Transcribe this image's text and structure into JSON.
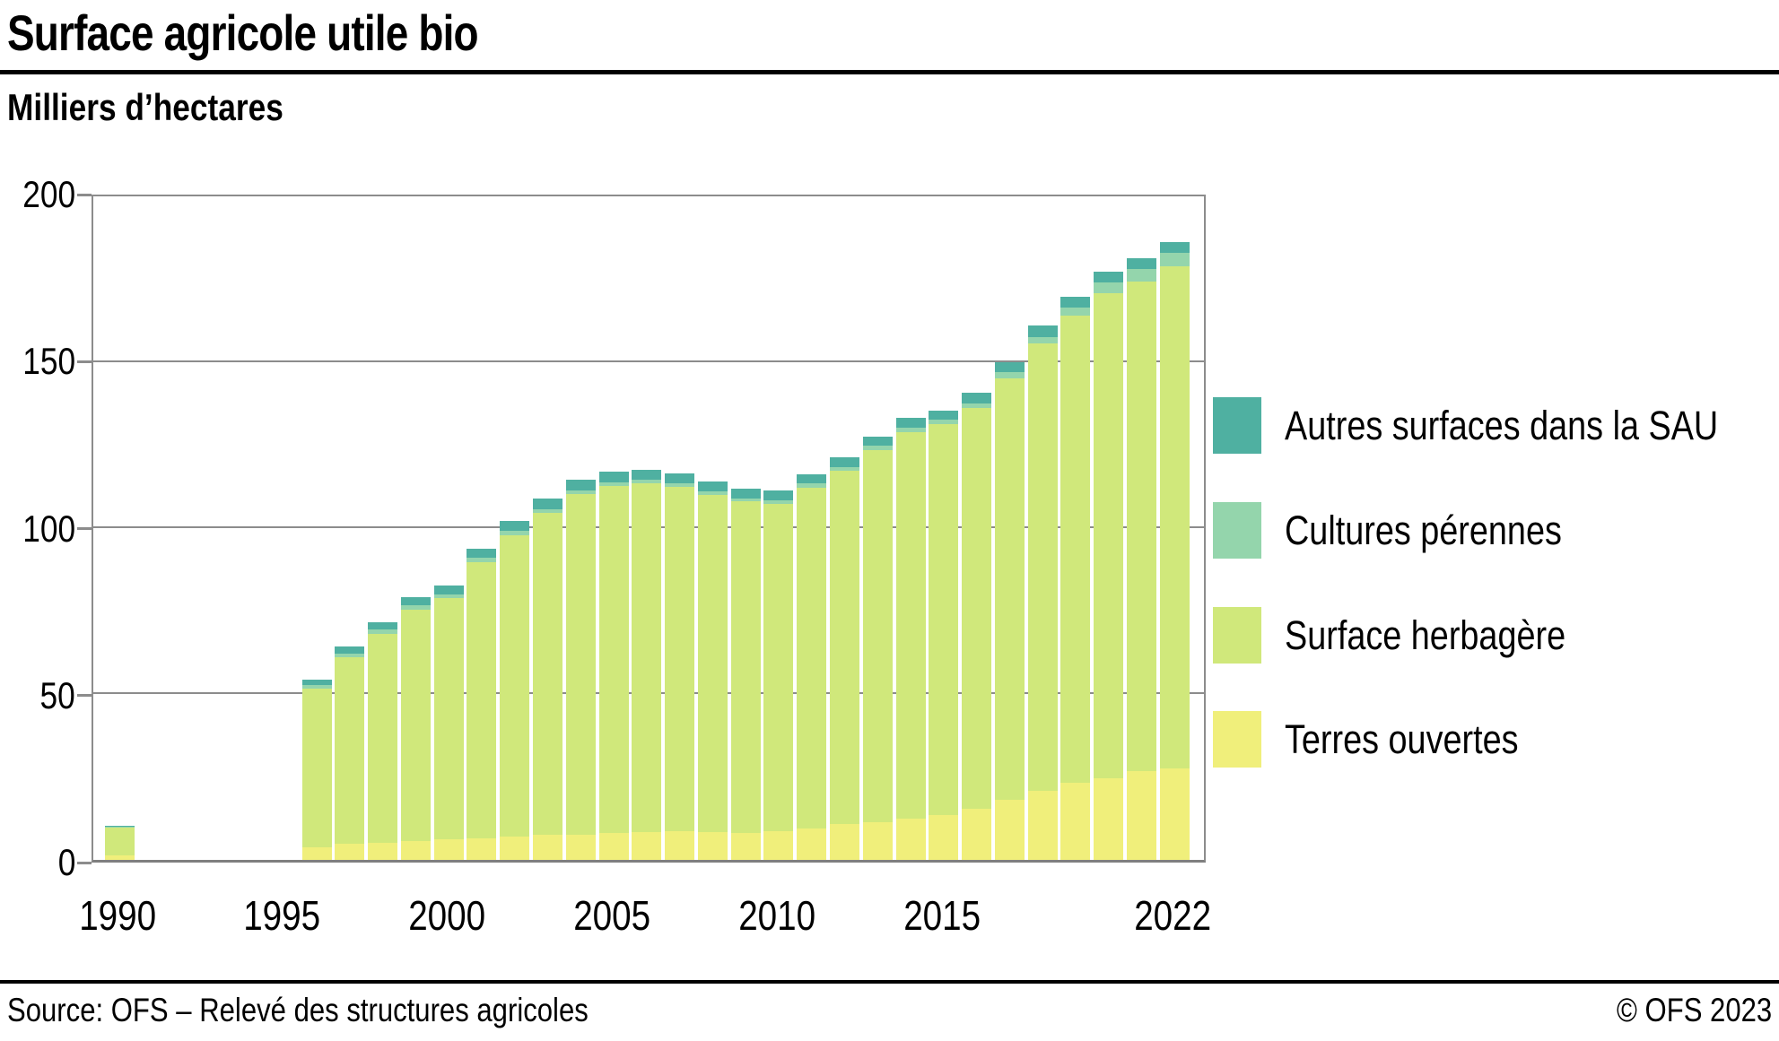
{
  "header": {
    "title": "Surface agricole utile bio",
    "subtitle": "Milliers d’hectares"
  },
  "footer": {
    "source": "Source: OFS – Relevé des structures agricoles",
    "copyright": "© OFS 2023"
  },
  "colors": {
    "autres_surfaces": "#4FB0A1",
    "cultures_perennes": "#94D5AC",
    "surface_herbagere": "#D0E87B",
    "terres_ouvertes": "#F0EF7B",
    "grid": "#8C8C8C",
    "rule": "#000000"
  },
  "legend": {
    "items": [
      {
        "label": "Autres surfaces dans la SAU",
        "color": "#4FB0A1"
      },
      {
        "label": "Cultures pérennes",
        "color": "#94D5AC"
      },
      {
        "label": "Surface herbagère",
        "color": "#D0E87B"
      },
      {
        "label": "Terres ouvertes",
        "color": "#F0EF7B"
      }
    ]
  },
  "chart_data": {
    "type": "bar",
    "stacked": true,
    "title": "Surface agricole utile bio",
    "ylabel": "Milliers d’hectares",
    "xlabel": "",
    "ylim": [
      0,
      200
    ],
    "grid": "horizontal every 50",
    "legend_position": "right",
    "yticks": [
      0,
      50,
      100,
      150,
      200
    ],
    "xtick_years": [
      1990,
      1995,
      2000,
      2005,
      2010,
      2015,
      2022
    ],
    "categories": [
      1990,
      1996,
      1997,
      1998,
      1999,
      2000,
      2001,
      2002,
      2003,
      2004,
      2005,
      2006,
      2007,
      2008,
      2009,
      2010,
      2011,
      2012,
      2013,
      2014,
      2015,
      2016,
      2017,
      2018,
      2019,
      2020,
      2021,
      2022
    ],
    "series": [
      {
        "name": "Terres ouvertes",
        "color": "#F0EF7B",
        "values": [
          1.3,
          3.8,
          4.9,
          5.1,
          5.7,
          6.2,
          6.5,
          7.0,
          7.6,
          7.6,
          8.1,
          8.4,
          8.6,
          8.5,
          8.1,
          8.6,
          9.5,
          10.8,
          11.4,
          12.4,
          13.5,
          15.4,
          18.1,
          20.8,
          23.2,
          24.6,
          26.8,
          27.6
        ]
      },
      {
        "name": "Surface herbagère",
        "color": "#D0E87B",
        "values": [
          8.4,
          47.7,
          56.1,
          63.1,
          69.8,
          72.7,
          83.3,
          90.9,
          97.0,
          102.7,
          104.7,
          105.2,
          103.9,
          101.5,
          99.9,
          98.8,
          102.8,
          106.5,
          112.0,
          116.6,
          117.8,
          120.9,
          127.0,
          134.9,
          140.9,
          146.3,
          147.6,
          151.3
        ]
      },
      {
        "name": "Cultures pérennes",
        "color": "#94D5AC",
        "values": [
          0.5,
          1.3,
          1.3,
          1.2,
          1.2,
          1.2,
          1.2,
          1.2,
          1.2,
          1.1,
          1.0,
          1.0,
          1.0,
          1.0,
          1.0,
          1.0,
          1.1,
          1.2,
          1.4,
          1.3,
          1.3,
          1.3,
          2.0,
          2.0,
          2.4,
          3.2,
          3.8,
          4.2
        ]
      },
      {
        "name": "Autres surfaces dans la SAU",
        "color": "#4FB0A1",
        "values": [
          0.2,
          1.6,
          2.0,
          2.2,
          2.4,
          2.5,
          2.8,
          3.0,
          3.0,
          3.1,
          3.1,
          3.1,
          3.0,
          3.0,
          2.9,
          2.9,
          2.9,
          2.9,
          2.9,
          2.9,
          2.9,
          3.1,
          2.9,
          3.3,
          3.1,
          3.1,
          3.1,
          3.0
        ]
      }
    ],
    "totals": [
      10.4,
      54.4,
      64.3,
      71.6,
      79.1,
      82.6,
      93.8,
      102.1,
      108.8,
      114.5,
      116.9,
      117.7,
      116.5,
      114.0,
      111.9,
      111.3,
      116.3,
      121.4,
      127.7,
      133.2,
      135.5,
      140.7,
      150.0,
      161.0,
      169.6,
      177.2,
      181.3,
      186.1
    ]
  }
}
